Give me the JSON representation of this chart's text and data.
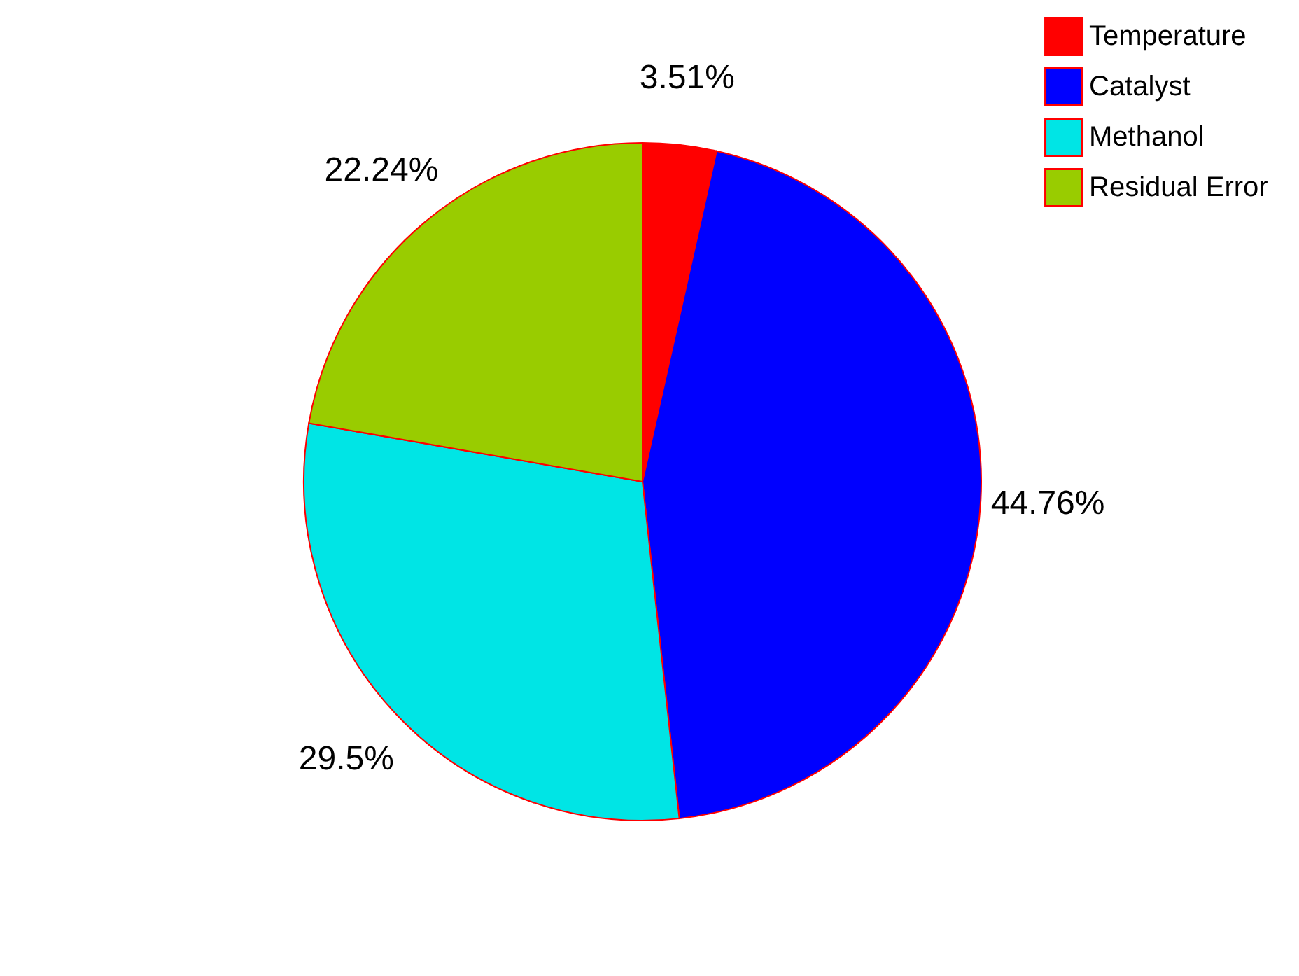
{
  "chart_data": {
    "type": "pie",
    "categories": [
      "Temperature",
      "Catalyst",
      "Methanol",
      "Residual Error"
    ],
    "values": [
      3.51,
      44.76,
      29.5,
      22.24
    ],
    "value_labels": [
      "3.51%",
      "44.76%",
      "29.5%",
      "22.24%"
    ],
    "colors": [
      "#ff0000",
      "#0000ff",
      "#00e5e5",
      "#99cc00"
    ],
    "legend": "top right"
  }
}
